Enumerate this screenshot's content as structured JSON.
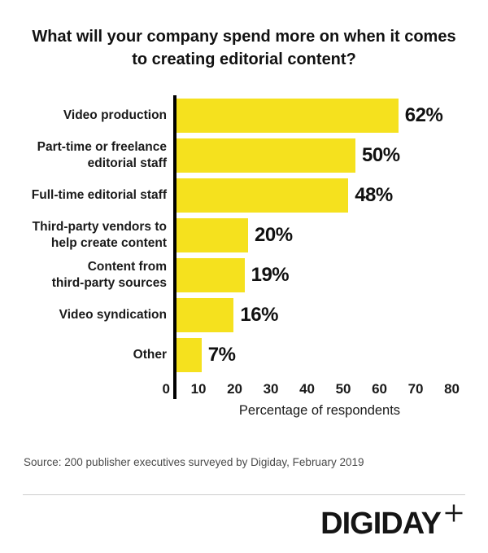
{
  "title": {
    "text": "What will your company spend more on when it comes to creating editorial content?",
    "line1": "What will your company spend more on when it comes",
    "line2": "to creating editorial content?"
  },
  "chart_data": {
    "type": "bar",
    "orientation": "horizontal",
    "title": "What will your company spend more on when it comes to creating editorial content?",
    "categories": [
      "Video production",
      "Part-time or freelance\neditorial staff",
      "Full-time editorial staff",
      "Third-party vendors to\nhelp create content",
      "Content from\nthird-party sources",
      "Video syndication",
      "Other"
    ],
    "values": [
      62,
      50,
      48,
      20,
      19,
      16,
      7
    ],
    "value_labels": [
      "62%",
      "50%",
      "48%",
      "20%",
      "19%",
      "16%",
      "7%"
    ],
    "xlabel": "Percentage of respondents",
    "ylabel": "",
    "xlim": [
      0,
      80
    ],
    "x_ticks": [
      "0",
      "10",
      "20",
      "30",
      "40",
      "50",
      "60",
      "70",
      "80"
    ],
    "grid": false,
    "legend": false,
    "bar_color": "#F5E11E"
  },
  "source": "Source: 200 publisher executives surveyed by Digiday, February 2019",
  "logo": {
    "text": "DIGIDAY",
    "plus_icon": "plus-icon"
  },
  "colors": {
    "bar": "#F5E11E",
    "axis": "#000000",
    "text": "#111111",
    "source_text": "#4a4a4a",
    "divider": "#cccccc"
  }
}
